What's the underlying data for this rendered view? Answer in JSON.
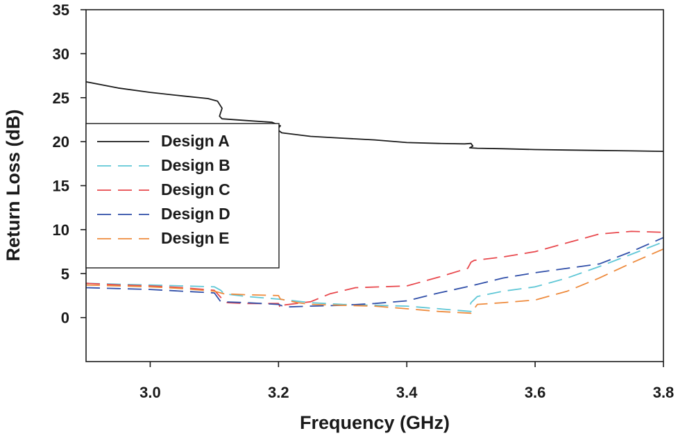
{
  "chart_data": {
    "type": "line",
    "title": "",
    "xlabel": "Frequency (GHz)",
    "ylabel": "Return Loss (dB)",
    "xlim": [
      2.9,
      3.8
    ],
    "ylim": [
      -5,
      35
    ],
    "xticks": [
      3.0,
      3.2,
      3.4,
      3.6,
      3.8
    ],
    "xtick_labels": [
      "3.0",
      "3.2",
      "3.4",
      "3.6",
      "3.8"
    ],
    "yticks": [
      0,
      5,
      10,
      15,
      20,
      25,
      30,
      35
    ],
    "ytick_labels": [
      "0",
      "5",
      "10",
      "15",
      "20",
      "25",
      "30",
      "35"
    ],
    "grid": false,
    "legend_position": "left",
    "series": [
      {
        "name": "Design A",
        "color": "#1a1a1a",
        "dash": "solid",
        "points": [
          [
            2.9,
            26.8
          ],
          [
            2.95,
            26.1
          ],
          [
            3.0,
            25.6
          ],
          [
            3.05,
            25.2
          ],
          [
            3.09,
            24.9
          ],
          [
            3.105,
            24.6
          ],
          [
            3.112,
            23.8
          ],
          [
            3.108,
            22.9
          ],
          [
            3.112,
            22.6
          ],
          [
            3.15,
            22.4
          ],
          [
            3.19,
            22.2
          ],
          [
            3.203,
            21.8
          ],
          [
            3.198,
            21.4
          ],
          [
            3.205,
            21.0
          ],
          [
            3.25,
            20.6
          ],
          [
            3.3,
            20.4
          ],
          [
            3.35,
            20.2
          ],
          [
            3.4,
            19.9
          ],
          [
            3.45,
            19.8
          ],
          [
            3.49,
            19.75
          ],
          [
            3.5,
            19.8
          ],
          [
            3.503,
            19.5
          ],
          [
            3.498,
            19.3
          ],
          [
            3.51,
            19.25
          ],
          [
            3.55,
            19.2
          ],
          [
            3.6,
            19.1
          ],
          [
            3.65,
            19.05
          ],
          [
            3.7,
            19.0
          ],
          [
            3.75,
            18.95
          ],
          [
            3.8,
            18.9
          ]
        ]
      },
      {
        "name": "Design B",
        "color": "#5fc7d6",
        "dash": "long-dash",
        "points": [
          [
            2.9,
            3.9
          ],
          [
            2.95,
            3.8
          ],
          [
            3.0,
            3.7
          ],
          [
            3.05,
            3.6
          ],
          [
            3.1,
            3.5
          ],
          [
            3.11,
            3.1
          ],
          [
            3.115,
            2.7
          ],
          [
            3.15,
            2.4
          ],
          [
            3.2,
            2.1
          ],
          [
            3.25,
            1.7
          ],
          [
            3.3,
            1.5
          ],
          [
            3.35,
            1.4
          ],
          [
            3.4,
            1.3
          ],
          [
            3.45,
            1.0
          ],
          [
            3.5,
            0.7
          ],
          [
            3.498,
            1.2
          ],
          [
            3.5,
            1.7
          ],
          [
            3.51,
            2.4
          ],
          [
            3.55,
            3.0
          ],
          [
            3.6,
            3.5
          ],
          [
            3.65,
            4.5
          ],
          [
            3.7,
            5.8
          ],
          [
            3.75,
            7.2
          ],
          [
            3.8,
            8.6
          ]
        ]
      },
      {
        "name": "Design C",
        "color": "#e8474c",
        "dash": "long-dash",
        "points": [
          [
            2.9,
            3.9
          ],
          [
            2.95,
            3.7
          ],
          [
            3.0,
            3.6
          ],
          [
            3.05,
            3.4
          ],
          [
            3.1,
            3.1
          ],
          [
            3.11,
            2.3
          ],
          [
            3.12,
            1.7
          ],
          [
            3.15,
            1.6
          ],
          [
            3.2,
            1.6
          ],
          [
            3.203,
            1.1
          ],
          [
            3.205,
            1.4
          ],
          [
            3.25,
            1.8
          ],
          [
            3.28,
            2.7
          ],
          [
            3.32,
            3.4
          ],
          [
            3.36,
            3.5
          ],
          [
            3.4,
            3.6
          ],
          [
            3.45,
            4.6
          ],
          [
            3.495,
            5.6
          ],
          [
            3.5,
            6.3
          ],
          [
            3.505,
            6.5
          ],
          [
            3.55,
            6.9
          ],
          [
            3.6,
            7.5
          ],
          [
            3.65,
            8.5
          ],
          [
            3.7,
            9.5
          ],
          [
            3.75,
            9.8
          ],
          [
            3.8,
            9.7
          ]
        ]
      },
      {
        "name": "Design D",
        "color": "#2f4ea8",
        "dash": "long-dash",
        "points": [
          [
            2.9,
            3.4
          ],
          [
            2.95,
            3.3
          ],
          [
            3.0,
            3.2
          ],
          [
            3.05,
            3.0
          ],
          [
            3.1,
            2.8
          ],
          [
            3.105,
            2.3
          ],
          [
            3.11,
            1.8
          ],
          [
            3.15,
            1.7
          ],
          [
            3.2,
            1.5
          ],
          [
            3.21,
            1.2
          ],
          [
            3.25,
            1.3
          ],
          [
            3.3,
            1.4
          ],
          [
            3.35,
            1.6
          ],
          [
            3.4,
            1.9
          ],
          [
            3.45,
            2.8
          ],
          [
            3.5,
            3.6
          ],
          [
            3.55,
            4.5
          ],
          [
            3.6,
            5.1
          ],
          [
            3.65,
            5.6
          ],
          [
            3.7,
            6.1
          ],
          [
            3.75,
            7.5
          ],
          [
            3.8,
            9.1
          ]
        ]
      },
      {
        "name": "Design E",
        "color": "#ee8a3c",
        "dash": "long-dash",
        "points": [
          [
            2.9,
            3.7
          ],
          [
            2.95,
            3.6
          ],
          [
            3.0,
            3.5
          ],
          [
            3.05,
            3.3
          ],
          [
            3.1,
            3.0
          ],
          [
            3.115,
            2.7
          ],
          [
            3.15,
            2.6
          ],
          [
            3.2,
            2.5
          ],
          [
            3.203,
            2.1
          ],
          [
            3.23,
            1.7
          ],
          [
            3.25,
            1.5
          ],
          [
            3.3,
            1.4
          ],
          [
            3.35,
            1.3
          ],
          [
            3.4,
            1.0
          ],
          [
            3.45,
            0.7
          ],
          [
            3.5,
            0.5
          ],
          [
            3.505,
            1.0
          ],
          [
            3.51,
            1.5
          ],
          [
            3.55,
            1.7
          ],
          [
            3.6,
            2.0
          ],
          [
            3.65,
            3.0
          ],
          [
            3.7,
            4.5
          ],
          [
            3.75,
            6.2
          ],
          [
            3.8,
            7.8
          ]
        ]
      }
    ]
  }
}
